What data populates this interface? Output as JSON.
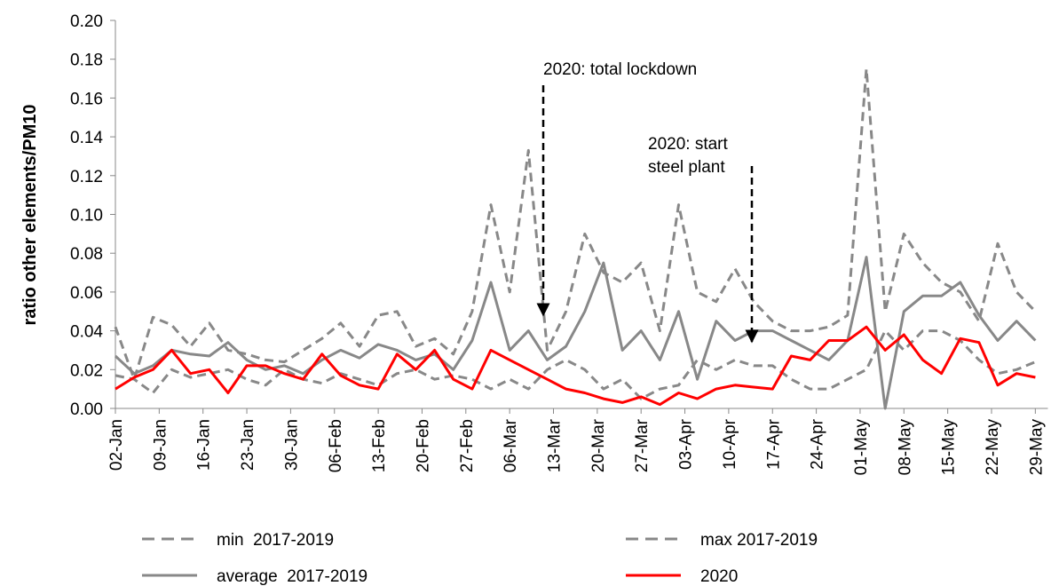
{
  "chart_data": {
    "type": "line",
    "y_label": "ratio other elements/PM10",
    "x": [
      0,
      3,
      6,
      9,
      12,
      15,
      18,
      21,
      24,
      27,
      30,
      33,
      36,
      39,
      42,
      45,
      48,
      51,
      54,
      57,
      60,
      63,
      66,
      69,
      72,
      75,
      78,
      81,
      84,
      87,
      90,
      93,
      96,
      99,
      102,
      105,
      108,
      111,
      114,
      117,
      120,
      123,
      126,
      129,
      132,
      135,
      138,
      141,
      144,
      147
    ],
    "xlim": [
      0,
      149
    ],
    "xticks": [
      {
        "value": 0,
        "label": "02-Jan"
      },
      {
        "value": 7,
        "label": "09-Jan"
      },
      {
        "value": 14,
        "label": "16-Jan"
      },
      {
        "value": 21,
        "label": "23-Jan"
      },
      {
        "value": 28,
        "label": "30-Jan"
      },
      {
        "value": 35,
        "label": "06-Feb"
      },
      {
        "value": 42,
        "label": "13-Feb"
      },
      {
        "value": 49,
        "label": "20-Feb"
      },
      {
        "value": 56,
        "label": "27-Feb"
      },
      {
        "value": 63,
        "label": "06-Mar"
      },
      {
        "value": 70,
        "label": "13-Mar"
      },
      {
        "value": 77,
        "label": "20-Mar"
      },
      {
        "value": 84,
        "label": "27-Mar"
      },
      {
        "value": 91,
        "label": "03-Apr"
      },
      {
        "value": 98,
        "label": "10-Apr"
      },
      {
        "value": 105,
        "label": "17-Apr"
      },
      {
        "value": 112,
        "label": "24-Apr"
      },
      {
        "value": 119,
        "label": "01-May"
      },
      {
        "value": 126,
        "label": "08-May"
      },
      {
        "value": 133,
        "label": "15-May"
      },
      {
        "value": 140,
        "label": "22-May"
      },
      {
        "value": 147,
        "label": "29-May"
      }
    ],
    "ylim": [
      0,
      0.2
    ],
    "yticks": [
      {
        "value": 0,
        "label": "0.00"
      },
      0.02,
      0.04,
      0.06,
      0.08,
      {
        "value": 0.1,
        "label": "0.10"
      },
      0.12,
      0.14,
      0.16,
      0.18,
      {
        "value": 0.2,
        "label": "0.20"
      }
    ],
    "series": [
      {
        "name": "min  2017-2019",
        "color": "#888888",
        "dashed": true,
        "values": [
          0.017,
          0.015,
          0.008,
          0.02,
          0.016,
          0.018,
          0.02,
          0.015,
          0.012,
          0.02,
          0.015,
          0.013,
          0.018,
          0.015,
          0.012,
          0.018,
          0.02,
          0.015,
          0.017,
          0.015,
          0.01,
          0.015,
          0.01,
          0.02,
          0.025,
          0.02,
          0.01,
          0.015,
          0.005,
          0.01,
          0.012,
          0.025,
          0.02,
          0.025,
          0.022,
          0.022,
          0.015,
          0.01,
          0.01,
          0.015,
          0.02,
          0.04,
          0.03,
          0.04,
          0.04,
          0.035,
          0.025,
          0.018,
          0.02,
          0.024
        ]
      },
      {
        "name": "max 2017-2019",
        "color": "#888888",
        "dashed": true,
        "values": [
          0.042,
          0.015,
          0.047,
          0.043,
          0.032,
          0.044,
          0.03,
          0.028,
          0.025,
          0.024,
          0.03,
          0.036,
          0.044,
          0.032,
          0.048,
          0.05,
          0.032,
          0.036,
          0.028,
          0.05,
          0.105,
          0.06,
          0.133,
          0.03,
          0.05,
          0.09,
          0.07,
          0.065,
          0.075,
          0.04,
          0.105,
          0.06,
          0.055,
          0.072,
          0.055,
          0.045,
          0.04,
          0.04,
          0.042,
          0.048,
          0.175,
          0.05,
          0.09,
          0.075,
          0.065,
          0.06,
          0.045,
          0.085,
          0.06,
          0.05
        ]
      },
      {
        "name": "average  2017-2019",
        "color": "#888888",
        "dashed": false,
        "values": [
          0.027,
          0.018,
          0.022,
          0.03,
          0.028,
          0.027,
          0.034,
          0.025,
          0.02,
          0.022,
          0.018,
          0.025,
          0.03,
          0.026,
          0.033,
          0.03,
          0.025,
          0.028,
          0.02,
          0.035,
          0.065,
          0.03,
          0.04,
          0.025,
          0.032,
          0.05,
          0.075,
          0.03,
          0.04,
          0.025,
          0.05,
          0.015,
          0.045,
          0.035,
          0.04,
          0.04,
          0.035,
          0.03,
          0.025,
          0.035,
          0.078,
          0,
          0.05,
          0.058,
          0.058,
          0.065,
          0.048,
          0.035,
          0.045,
          0.035
        ]
      },
      {
        "name": "2020",
        "color": "#ff0000",
        "dashed": false,
        "values": [
          0.01,
          0.016,
          0.02,
          0.03,
          0.018,
          0.02,
          0.008,
          0.022,
          0.022,
          0.018,
          0.015,
          0.028,
          0.017,
          0.012,
          0.01,
          0.028,
          0.02,
          0.03,
          0.015,
          0.01,
          0.03,
          0.025,
          0.02,
          0.015,
          0.01,
          0.008,
          0.005,
          0.003,
          0.006,
          0.002,
          0.008,
          0.005,
          0.01,
          0.012,
          0.011,
          0.01,
          0.027,
          0.025,
          0.035,
          0.035,
          0.042,
          0.03,
          0.038,
          0.025,
          0.018,
          0.036,
          0.034,
          0.012,
          0.018,
          0.016
        ]
      }
    ],
    "annotations": [
      [
        "2020: total lockdown"
      ],
      [
        "2020: start",
        "steel plant"
      ]
    ]
  }
}
